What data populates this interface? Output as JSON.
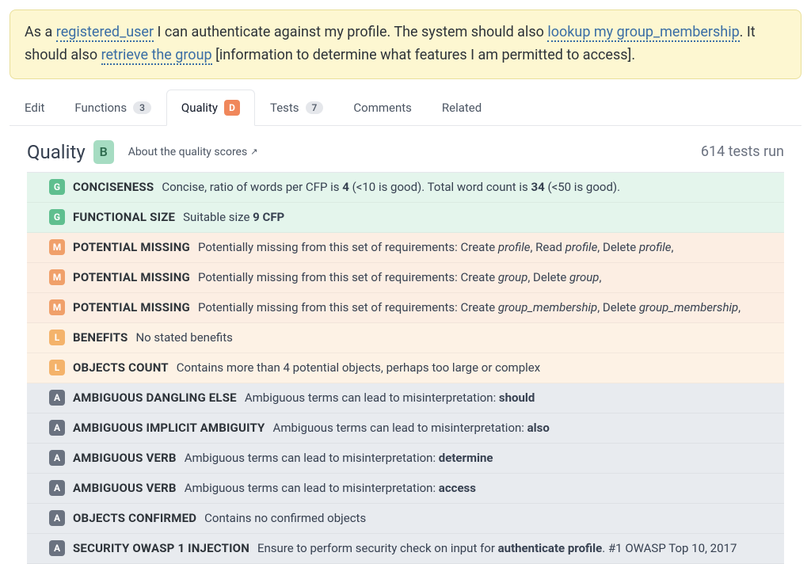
{
  "colors": {
    "story_bg": "#fdf7d1",
    "story_border": "#e9df9a",
    "link": "#3a6ea5",
    "badge_G": "#5fbf8f",
    "row_G_bg": "#e4f5ec",
    "badge_M": "#f0a06a",
    "row_M_bg": "#fceee3",
    "badge_L": "#f4b36b",
    "row_L_bg": "#fdf2e5",
    "badge_A": "#6a7280",
    "row_A_bg": "#e8ebef",
    "badge_D": "#f0875b",
    "badge_B_bg": "#a6dcc2",
    "badge_B_fg": "#2f6b4f"
  },
  "story": {
    "parts": [
      {
        "t": "text",
        "v": "As a "
      },
      {
        "t": "link",
        "v": "registered_user"
      },
      {
        "t": "text",
        "v": " I can authenticate against my profile. The system should also "
      },
      {
        "t": "link",
        "v": "lookup my group_membership"
      },
      {
        "t": "text",
        "v": ". It should also "
      },
      {
        "t": "link",
        "v": "retrieve the group"
      },
      {
        "t": "text",
        "v": " [information to determine what features I am permitted to access]."
      }
    ]
  },
  "tabs": [
    {
      "label": "Edit",
      "count": null,
      "badge": null,
      "active": false
    },
    {
      "label": "Functions",
      "count": "3",
      "badge": null,
      "active": false
    },
    {
      "label": "Quality",
      "count": null,
      "badge": "D",
      "active": true
    },
    {
      "label": "Tests",
      "count": "7",
      "badge": null,
      "active": false
    },
    {
      "label": "Comments",
      "count": null,
      "badge": null,
      "active": false
    },
    {
      "label": "Related",
      "count": null,
      "badge": null,
      "active": false
    }
  ],
  "header": {
    "title": "Quality",
    "grade": "B",
    "about": "About the quality scores",
    "tests_run": "614 tests run"
  },
  "rows": [
    {
      "level": "G",
      "title": "CONCISENESS",
      "html": "Concise, ratio of words per CFP is <b>4</b> (<10 is good). Total word count is <b>34</b> (<50 is good)."
    },
    {
      "level": "G",
      "title": "FUNCTIONAL SIZE",
      "html": "Suitable size <b>9 CFP</b>"
    },
    {
      "level": "M",
      "title": "POTENTIAL MISSING",
      "html": "Potentially missing from this set of requirements: Create <i>profile</i>, Read <i>profile</i>, Delete <i>profile</i>,"
    },
    {
      "level": "M",
      "title": "POTENTIAL MISSING",
      "html": "Potentially missing from this set of requirements: Create <i>group</i>, Delete <i>group</i>,"
    },
    {
      "level": "M",
      "title": "POTENTIAL MISSING",
      "html": "Potentially missing from this set of requirements: Create <i>group_membership</i>, Delete <i>group_membership</i>,"
    },
    {
      "level": "L",
      "title": "BENEFITS",
      "html": "No stated benefits"
    },
    {
      "level": "L",
      "title": "OBJECTS COUNT",
      "html": "Contains more than 4 potential objects, perhaps too large or complex"
    },
    {
      "level": "A",
      "title": "AMBIGUOUS DANGLING ELSE",
      "html": "Ambiguous terms can lead to misinterpretation: <b>should</b>"
    },
    {
      "level": "A",
      "title": "AMBIGUOUS IMPLICIT AMBIGUITY",
      "html": "Ambiguous terms can lead to misinterpretation: <b>also</b>"
    },
    {
      "level": "A",
      "title": "AMBIGUOUS VERB",
      "html": "Ambiguous terms can lead to misinterpretation: <b>determine</b>"
    },
    {
      "level": "A",
      "title": "AMBIGUOUS VERB",
      "html": "Ambiguous terms can lead to misinterpretation: <b>access</b>"
    },
    {
      "level": "A",
      "title": "OBJECTS CONFIRMED",
      "html": "Contains no confirmed objects"
    },
    {
      "level": "A",
      "title": "SECURITY OWASP 1 INJECTION",
      "html": "Ensure to perform security check on input for <b>authenticate profile</b>. #1 OWASP Top 10, 2017"
    }
  ]
}
